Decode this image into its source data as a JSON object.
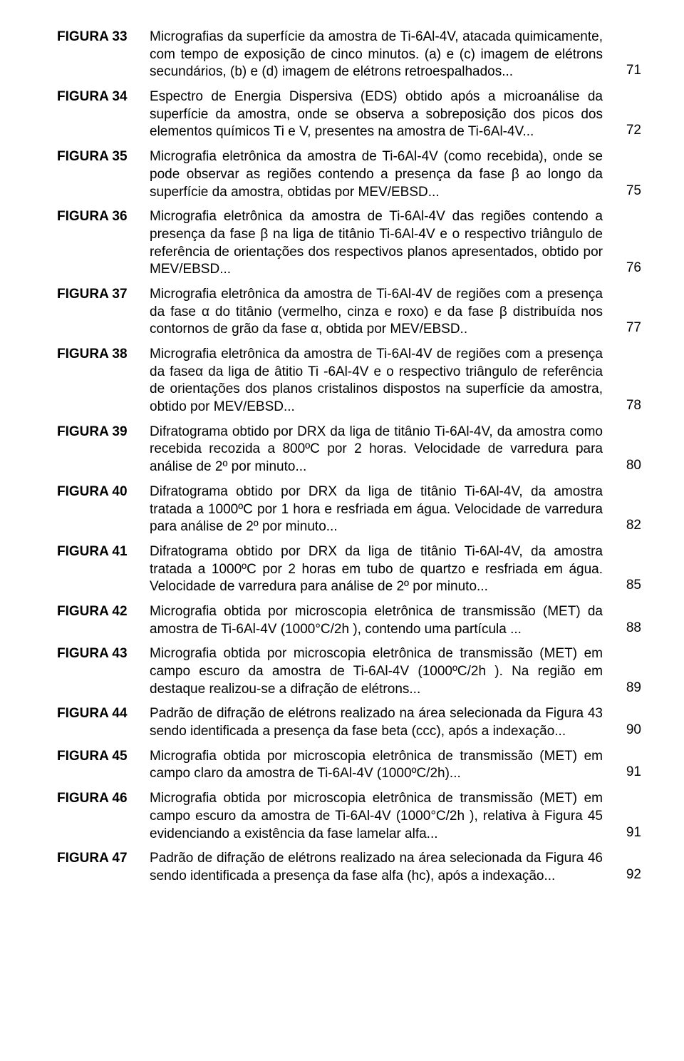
{
  "figures": [
    {
      "label": "FIGURA 33",
      "desc": "Micrografias da superfície da amostra de Ti-6Al-4V, atacada quimicamente, com tempo de exposição de cinco minutos. (a) e (c) imagem de elétrons secundários, (b) e (d) imagem de elétrons retroespalhados...",
      "page": "71"
    },
    {
      "label": "FIGURA 34",
      "desc": "Espectro de Energia Dispersiva (EDS) obtido após a microanálise da superfície da amostra, onde se observa a sobreposição dos picos dos elementos químicos Ti e V, presentes na amostra de Ti-6Al-4V...",
      "page": "72"
    },
    {
      "label": "FIGURA 35",
      "desc": "Micrografia eletrônica da amostra de Ti-6Al-4V (como recebida), onde se pode observar as regiões contendo a presença da fase β ao longo da superfície da amostra, obtidas por MEV/EBSD...",
      "page": "75"
    },
    {
      "label": "FIGURA 36",
      "desc": "Micrografia eletrônica da amostra de Ti-6Al-4V das regiões contendo a presença da fase β na liga de titânio Ti-6Al-4V e o respectivo triângulo de referência de orientações dos respectivos planos apresentados, obtido por MEV/EBSD...",
      "page": "76"
    },
    {
      "label": "FIGURA 37",
      "desc": "Micrografia eletrônica da amostra de Ti-6Al-4V de regiões com a presença da fase α do titânio (vermelho, cinza e roxo) e da fase β distribuída nos contornos de grão da fase α, obtida por MEV/EBSD..",
      "page": "77"
    },
    {
      "label": "FIGURA 38",
      "desc": "Micrografia eletrônica da amostra de Ti-6Al-4V de regiões com a presença da faseα da liga de âtitio Ti  -6Al-4V e o respectivo triângulo de referência de orientações dos planos cristalinos dispostos na superfície da amostra, obtido por MEV/EBSD...",
      "page": "78"
    },
    {
      "label": "FIGURA 39",
      "desc": "Difratograma obtido por DRX da liga de titânio Ti-6Al-4V, da amostra como recebida recozida a 800ºC por 2 horas. Velocidade de varredura para análise de 2º por minuto...",
      "page": "80"
    },
    {
      "label": "FIGURA 40",
      "desc": "Difratograma obtido por DRX da liga de titânio Ti-6Al-4V, da amostra tratada a 1000ºC por 1 hora e resfriada em água. Velocidade de varredura para análise de 2º por minuto...",
      "page": "82"
    },
    {
      "label": "FIGURA 41",
      "desc": "Difratograma obtido por DRX da liga de titânio Ti-6Al-4V, da amostra tratada a 1000ºC por 2 horas em tubo de quartzo e resfriada em água. Velocidade de varredura para análise de 2º por minuto...",
      "page": "85"
    },
    {
      "label": "FIGURA 42",
      "desc": "Micrografia obtida por microscopia eletrônica de transmissão (MET) da amostra de Ti-6Al-4V (1000°C/2h ), contendo uma partícula ...",
      "page": "88"
    },
    {
      "label": "FIGURA 43",
      "desc": "Micrografia obtida por microscopia eletrônica de transmissão (MET) em campo escuro da amostra de Ti-6Al-4V (1000ºC/2h ). Na região em destaque realizou-se a difração de elétrons...",
      "page": "89"
    },
    {
      "label": "FIGURA 44",
      "desc": "Padrão de difração de elétrons realizado na área selecionada da Figura 43 sendo identificada a presença da fase beta (ccc), após a indexação...",
      "page": "90"
    },
    {
      "label": "FIGURA 45",
      "desc": "Micrografia obtida por microscopia eletrônica de transmissão (MET) em campo claro da amostra de Ti-6Al-4V (1000ºC/2h)...",
      "page": "91"
    },
    {
      "label": "FIGURA 46",
      "desc": "Micrografia obtida por microscopia eletrônica de transmissão (MET) em campo escuro da amostra de Ti-6Al-4V (1000°C/2h ), relativa à Figura 45 evidenciando a existência da fase lamelar alfa...",
      "page": "91"
    },
    {
      "label": "FIGURA 47",
      "desc": "Padrão de difração de elétrons realizado na área selecionada da Figura 46 sendo identificada a presença da fase alfa (hc), após a indexação...",
      "page": "92"
    }
  ]
}
